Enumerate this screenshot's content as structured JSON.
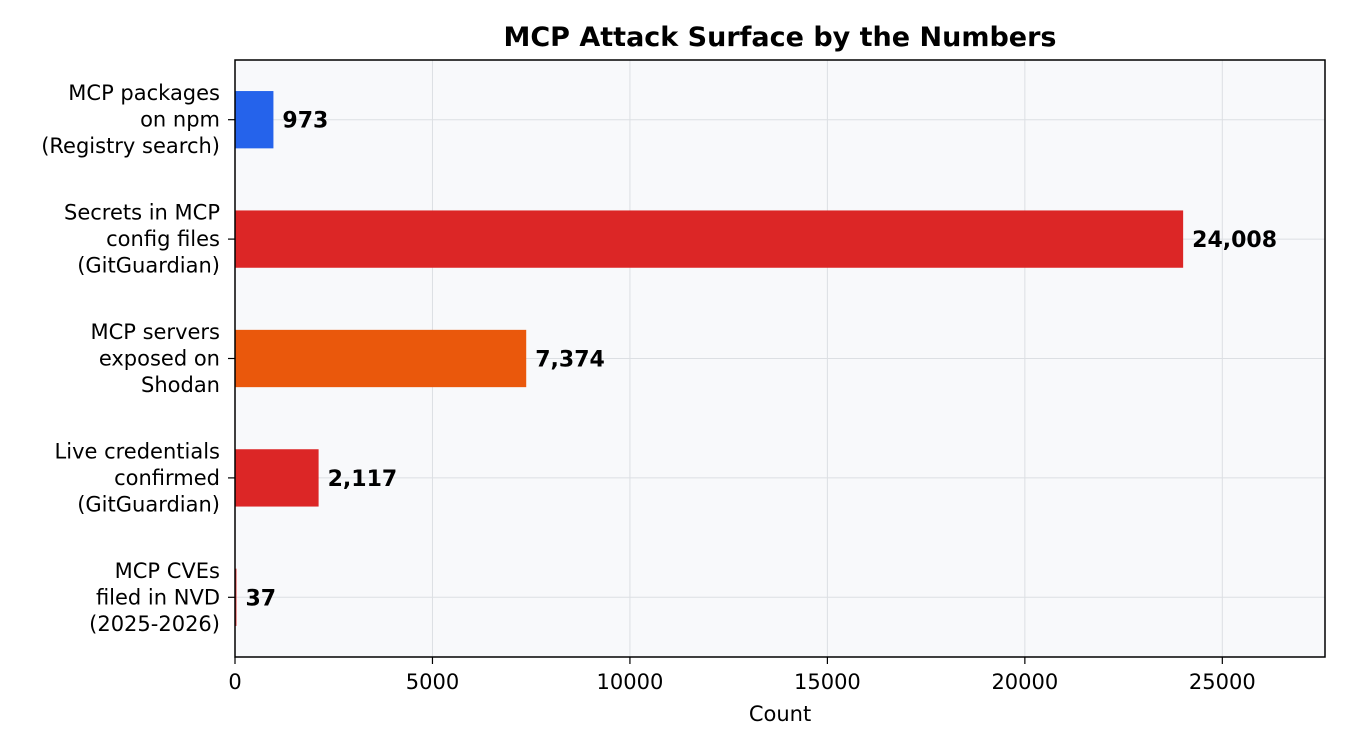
{
  "chart_data": {
    "type": "bar",
    "orientation": "horizontal",
    "title": "MCP Attack Surface by the Numbers",
    "xlabel": "Count",
    "ylabel": "",
    "categories": [
      [
        "MCP packages",
        "on npm",
        "(Registry search)"
      ],
      [
        "Secrets in MCP",
        "config files",
        "(GitGuardian)"
      ],
      [
        "MCP servers",
        "exposed on",
        "Shodan"
      ],
      [
        "Live credentials",
        "confirmed",
        "(GitGuardian)"
      ],
      [
        "MCP CVEs",
        "filed in NVD",
        "(2025-2026)"
      ]
    ],
    "values": [
      973,
      24008,
      7374,
      2117,
      37
    ],
    "value_labels": [
      "973",
      "24,008",
      "7,374",
      "2,117",
      "37"
    ],
    "colors": [
      "#2563eb",
      "#dc2626",
      "#ea580c",
      "#dc2626",
      "#dc2626"
    ],
    "xlim": [
      0,
      27600
    ],
    "xticks": [
      0,
      5000,
      10000,
      15000,
      20000,
      25000
    ],
    "xtick_labels": [
      "0",
      "5000",
      "10000",
      "15000",
      "20000",
      "25000"
    ],
    "grid": true,
    "background_color": "#f8f9fb",
    "grid_color": "#dcdfe3",
    "legend": "none"
  }
}
